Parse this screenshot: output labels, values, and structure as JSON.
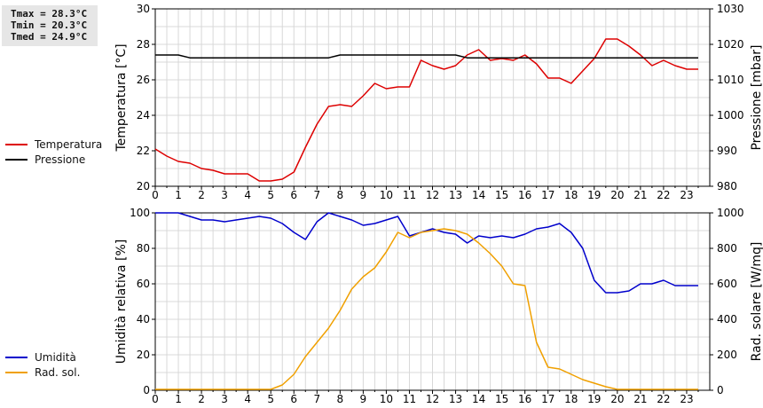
{
  "stats": {
    "tmax": "Tmax = 28.3°C",
    "tmin": "Tmin = 20.3°C",
    "tmed": "Tmed = 24.9°C"
  },
  "colors": {
    "temperature": "#dd0000",
    "pressure": "#000000",
    "humidity": "#0000cc",
    "radiation": "#f0a000",
    "grid": "#d8d8d8"
  },
  "legend_top": [
    {
      "label": "Temperatura",
      "color": "#dd0000"
    },
    {
      "label": "Pressione",
      "color": "#000000"
    }
  ],
  "legend_bottom": [
    {
      "label": "Umidità",
      "color": "#0000cc"
    },
    {
      "label": "Rad. sol.",
      "color": "#f0a000"
    }
  ],
  "chart_data": [
    {
      "type": "line",
      "xlabel": "",
      "x_ticks": [
        "0",
        "1",
        "2",
        "3",
        "4",
        "5",
        "6",
        "7",
        "8",
        "9",
        "10",
        "11",
        "12",
        "13",
        "14",
        "15",
        "16",
        "17",
        "18",
        "19",
        "20",
        "21",
        "22",
        "23"
      ],
      "xlim": [
        0,
        24
      ],
      "ylabel_left": "Temperatura [°C]",
      "ylim_left": [
        20,
        30
      ],
      "yticks_left": [
        20,
        22,
        24,
        26,
        28,
        30
      ],
      "ylabel_right": "Pressione [mbar]",
      "ylim_right": [
        980,
        1030
      ],
      "yticks_right": [
        980,
        990,
        1000,
        1010,
        1020,
        1030
      ],
      "grid": true,
      "legend_placement": "left",
      "series": [
        {
          "name": "Temperatura",
          "axis": "left",
          "x": [
            0,
            0.5,
            1,
            1.5,
            2,
            2.5,
            3,
            3.5,
            4,
            4.5,
            5,
            5.5,
            6,
            6.5,
            7,
            7.5,
            8,
            8.5,
            9,
            9.5,
            10,
            10.5,
            11,
            11.5,
            12,
            12.5,
            13,
            13.5,
            14,
            14.5,
            15,
            15.5,
            16,
            16.5,
            17,
            17.5,
            18,
            18.5,
            19,
            19.5,
            20,
            20.5,
            21,
            21.5,
            22,
            22.5,
            23,
            23.5
          ],
          "y": [
            22.1,
            21.7,
            21.4,
            21.3,
            21.0,
            20.9,
            20.7,
            20.7,
            20.7,
            20.3,
            20.3,
            20.4,
            20.8,
            22.2,
            23.5,
            24.5,
            24.6,
            24.5,
            25.1,
            25.8,
            25.5,
            25.6,
            25.6,
            27.1,
            26.8,
            26.6,
            26.8,
            27.4,
            27.7,
            27.1,
            27.2,
            27.1,
            27.4,
            26.9,
            26.1,
            26.1,
            25.8,
            26.5,
            27.2,
            28.3,
            28.3,
            27.9,
            27.4,
            26.8,
            27.1,
            26.8,
            26.6,
            26.6
          ]
        },
        {
          "name": "Pressione",
          "axis": "right",
          "x": [
            0,
            1,
            1.5,
            7.5,
            8,
            13,
            13.5,
            23.5
          ],
          "y": [
            1017,
            1017,
            1016.2,
            1016.2,
            1017,
            1017,
            1016.2,
            1016.2
          ]
        }
      ]
    },
    {
      "type": "line",
      "xlabel": "",
      "x_ticks": [
        "0",
        "1",
        "2",
        "3",
        "4",
        "5",
        "6",
        "7",
        "8",
        "9",
        "10",
        "11",
        "12",
        "13",
        "14",
        "15",
        "16",
        "17",
        "18",
        "19",
        "20",
        "21",
        "22",
        "23"
      ],
      "xlim": [
        0,
        24
      ],
      "ylabel_left": "Umidità relativa [%]",
      "ylim_left": [
        0,
        100
      ],
      "yticks_left": [
        0,
        20,
        40,
        60,
        80,
        100
      ],
      "ylabel_right": "Rad. solare [W/mq]",
      "ylim_right": [
        0,
        1000
      ],
      "yticks_right": [
        0,
        200,
        400,
        600,
        800,
        1000
      ],
      "grid": true,
      "legend_placement": "left",
      "series": [
        {
          "name": "Umidità",
          "axis": "left",
          "x": [
            0,
            0.5,
            1,
            1.5,
            2,
            2.5,
            3,
            3.5,
            4,
            4.5,
            5,
            5.5,
            6,
            6.5,
            7,
            7.5,
            8,
            8.5,
            9,
            9.5,
            10,
            10.5,
            11,
            11.5,
            12,
            12.5,
            13,
            13.5,
            14,
            14.5,
            15,
            15.5,
            16,
            16.5,
            17,
            17.5,
            18,
            18.5,
            19,
            19.5,
            20,
            20.5,
            21,
            21.5,
            22,
            22.5,
            23,
            23.5
          ],
          "y": [
            100,
            100,
            100,
            98,
            96,
            96,
            95,
            96,
            97,
            98,
            97,
            94,
            89,
            85,
            95,
            100,
            98,
            96,
            93,
            94,
            96,
            98,
            87,
            89,
            91,
            89,
            88,
            83,
            87,
            86,
            87,
            86,
            88,
            91,
            92,
            94,
            89,
            80,
            62,
            55,
            55,
            56,
            60,
            60,
            62,
            59,
            59,
            59
          ]
        },
        {
          "name": "Rad. sol.",
          "axis": "right",
          "x": [
            0,
            0.5,
            1,
            1.5,
            2,
            2.5,
            3,
            3.5,
            4,
            4.5,
            5,
            5.5,
            6,
            6.5,
            7,
            7.5,
            8,
            8.5,
            9,
            9.5,
            10,
            10.5,
            11,
            11.5,
            12,
            12.5,
            13,
            13.5,
            14,
            14.5,
            15,
            15.5,
            16,
            16.5,
            17,
            17.5,
            18,
            18.5,
            19,
            19.5,
            20,
            20.5,
            21,
            21.5,
            22,
            22.5,
            23,
            23.5
          ],
          "y": [
            5,
            5,
            5,
            5,
            5,
            5,
            5,
            5,
            5,
            5,
            5,
            30,
            90,
            190,
            270,
            350,
            450,
            570,
            640,
            690,
            780,
            890,
            860,
            890,
            900,
            910,
            900,
            880,
            830,
            770,
            700,
            600,
            590,
            270,
            130,
            120,
            90,
            60,
            40,
            20,
            5,
            5,
            5,
            5,
            5,
            5,
            5,
            5
          ]
        }
      ]
    }
  ]
}
